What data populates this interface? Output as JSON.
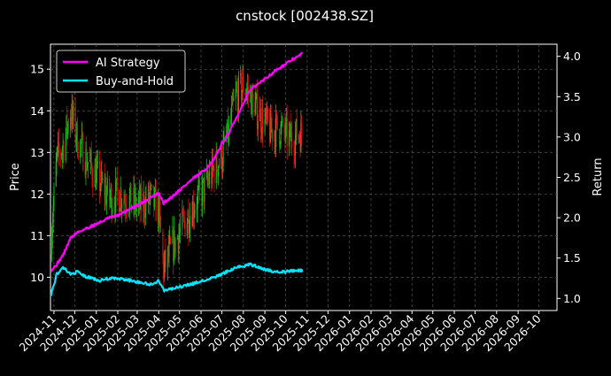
{
  "chart_data": {
    "type": "line",
    "title": "cnstock [002438.SZ]",
    "ylabel": "Price",
    "ylabel_right": "Return",
    "xlabel": "",
    "ylim": [
      9.2,
      15.6
    ],
    "ylim_right": [
      0.85,
      4.15
    ],
    "xlim": [
      "2024-10-27",
      "2026-10-27"
    ],
    "grid": true,
    "legend_position": "top-left",
    "y_ticks": [
      10,
      11,
      12,
      13,
      14,
      15
    ],
    "y_ticks_right": [
      1.0,
      1.5,
      2.0,
      2.5,
      3.0,
      3.5,
      4.0
    ],
    "x_ticks": [
      "2024-11",
      "2024-12",
      "2025-01",
      "2025-02",
      "2025-03",
      "2025-04",
      "2025-05",
      "2025-06",
      "2025-07",
      "2025-08",
      "2025-09",
      "2025-10",
      "2025-11",
      "2025-12",
      "2026-01",
      "2026-02",
      "2026-03",
      "2026-04",
      "2026-05",
      "2026-06",
      "2026-07",
      "2026-08",
      "2026-09",
      "2026-10"
    ],
    "colors": {
      "background": "#000000",
      "ai_strategy": "#ff00ff",
      "buy_and_hold": "#00e5ff",
      "candle_up": "#1db81d",
      "candle_down": "#e01010",
      "grid": "#555555"
    },
    "series": [
      {
        "name": "AI Strategy",
        "axis": "right",
        "x": [
          "2024-10-28",
          "2024-11-05",
          "2024-11-15",
          "2024-11-25",
          "2024-12-05",
          "2024-12-16",
          "2024-12-26",
          "2025-01-06",
          "2025-01-20",
          "2025-02-05",
          "2025-02-20",
          "2025-03-05",
          "2025-03-20",
          "2025-04-01",
          "2025-04-08",
          "2025-04-20",
          "2025-05-05",
          "2025-05-20",
          "2025-06-05",
          "2025-06-20",
          "2025-07-01",
          "2025-07-10",
          "2025-07-20",
          "2025-08-01",
          "2025-08-10",
          "2025-08-20",
          "2025-09-01",
          "2025-09-10",
          "2025-09-20",
          "2025-10-01",
          "2025-10-10",
          "2025-10-20",
          "2025-10-25"
        ],
        "values": [
          1.35,
          1.42,
          1.55,
          1.75,
          1.82,
          1.86,
          1.9,
          1.94,
          2.0,
          2.04,
          2.12,
          2.17,
          2.25,
          2.3,
          2.18,
          2.26,
          2.37,
          2.48,
          2.58,
          2.72,
          2.92,
          3.03,
          3.2,
          3.42,
          3.58,
          3.64,
          3.72,
          3.78,
          3.85,
          3.9,
          3.96,
          4.0,
          4.05
        ]
      },
      {
        "name": "Buy-and-Hold",
        "axis": "right",
        "x": [
          "2024-10-28",
          "2024-11-05",
          "2024-11-15",
          "2024-11-25",
          "2024-12-05",
          "2024-12-16",
          "2024-12-26",
          "2025-01-06",
          "2025-01-20",
          "2025-02-05",
          "2025-02-20",
          "2025-03-05",
          "2025-03-20",
          "2025-04-01",
          "2025-04-08",
          "2025-04-20",
          "2025-05-05",
          "2025-05-20",
          "2025-06-05",
          "2025-06-20",
          "2025-07-01",
          "2025-07-10",
          "2025-07-20",
          "2025-08-01",
          "2025-08-10",
          "2025-08-20",
          "2025-09-01",
          "2025-09-10",
          "2025-09-20",
          "2025-10-01",
          "2025-10-10",
          "2025-10-20",
          "2025-10-25"
        ],
        "values": [
          1.05,
          1.3,
          1.38,
          1.3,
          1.33,
          1.27,
          1.25,
          1.22,
          1.25,
          1.24,
          1.22,
          1.2,
          1.17,
          1.22,
          1.1,
          1.12,
          1.15,
          1.18,
          1.22,
          1.26,
          1.3,
          1.34,
          1.38,
          1.4,
          1.42,
          1.4,
          1.36,
          1.34,
          1.33,
          1.33,
          1.34,
          1.35,
          1.34
        ]
      },
      {
        "name": "Price",
        "axis": "left",
        "type": "candlestick",
        "x": [
          "2024-10-28",
          "2024-11-05",
          "2024-11-15",
          "2024-11-25",
          "2024-12-05",
          "2024-12-16",
          "2024-12-26",
          "2025-01-06",
          "2025-01-20",
          "2025-02-05",
          "2025-02-20",
          "2025-03-05",
          "2025-03-20",
          "2025-04-01",
          "2025-04-08",
          "2025-04-20",
          "2025-05-05",
          "2025-05-20",
          "2025-06-05",
          "2025-06-20",
          "2025-07-01",
          "2025-07-10",
          "2025-07-20",
          "2025-08-01",
          "2025-08-10",
          "2025-08-20",
          "2025-09-01",
          "2025-09-10",
          "2025-09-20",
          "2025-10-01",
          "2025-10-10",
          "2025-10-20",
          "2025-10-25"
        ],
        "values": [
          11.0,
          12.8,
          13.2,
          14.0,
          13.3,
          12.9,
          12.6,
          12.3,
          11.9,
          12.0,
          11.8,
          11.7,
          11.9,
          11.6,
          10.2,
          10.7,
          11.2,
          11.7,
          12.1,
          12.6,
          12.9,
          13.4,
          14.3,
          14.6,
          14.4,
          14.0,
          13.7,
          13.5,
          13.6,
          13.4,
          13.3,
          13.5,
          13.4
        ]
      }
    ]
  }
}
